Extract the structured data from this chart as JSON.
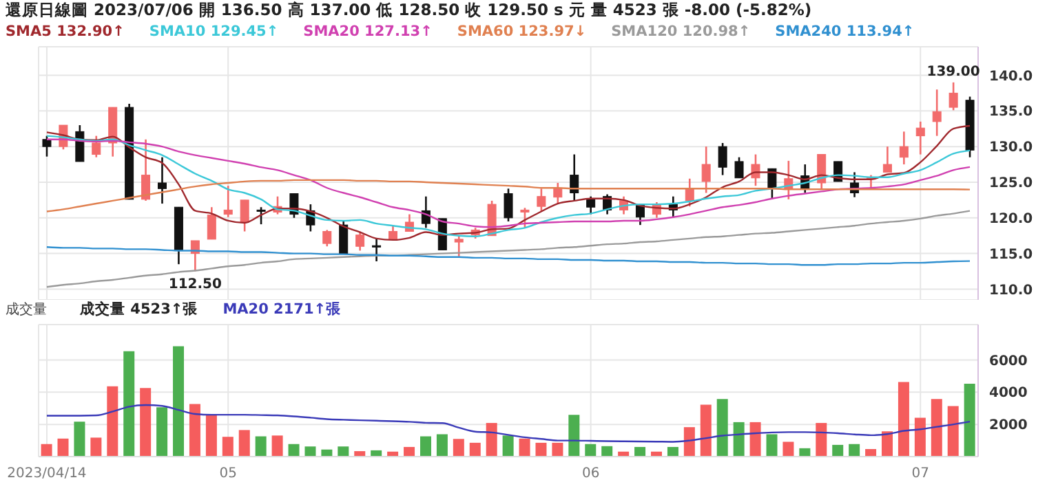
{
  "chart_data": [
    {
      "type": "candlestick",
      "title": "還原日線圖 2023/07/06 開 136.50 高 137.00 低 128.50 收 129.50 s 元 量 4523 張 -8.00 (-5.82%)",
      "categories": [
        "2023/04/14",
        null,
        null,
        null,
        null,
        null,
        null,
        null,
        null,
        null,
        null,
        "05",
        null,
        null,
        null,
        null,
        null,
        null,
        null,
        null,
        null,
        null,
        null,
        null,
        null,
        null,
        null,
        null,
        null,
        null,
        null,
        null,
        null,
        "06",
        null,
        null,
        null,
        null,
        null,
        null,
        null,
        null,
        null,
        null,
        null,
        null,
        null,
        null,
        null,
        null,
        null,
        null,
        null,
        "07",
        null,
        null,
        null
      ],
      "series": [
        {
          "type": "candlestick",
          "colors": [
            "#111111",
            "#f26b6b",
            "#111111",
            "#f26b6b",
            "#f26b6b",
            "#111111",
            "#f26b6b",
            "#111111",
            "#111111",
            "#f26b6b",
            "#f26b6b",
            "#f26b6b",
            "#f26b6b",
            "#111111",
            "#f26b6b",
            "#111111",
            "#111111",
            "#f26b6b",
            "#111111",
            "#f26b6b",
            "#111111",
            "#f26b6b",
            "#f26b6b",
            "#111111",
            "#111111",
            "#f26b6b",
            "#f26b6b",
            "#f26b6b",
            "#111111",
            "#f26b6b",
            "#f26b6b",
            "#f26b6b",
            "#111111",
            "#111111",
            "#111111",
            "#f26b6b",
            "#111111",
            "#f26b6b",
            "#111111",
            "#f26b6b",
            "#f26b6b",
            "#111111",
            "#111111",
            "#f26b6b",
            "#111111",
            "#f26b6b",
            "#111111",
            "#f26b6b",
            "#111111",
            "#111111",
            "#f26b6b",
            "#f26b6b",
            "#f26b6b",
            "#f26b6b",
            "#f26b6b",
            "#f26b6b",
            "#111111"
          ],
          "ohlc": [
            [
              131.0,
              131.5,
              128.6,
              130.0
            ],
            [
              130.0,
              133.0,
              129.6,
              133.0
            ],
            [
              132.1,
              133.0,
              127.9,
              127.9
            ],
            [
              128.9,
              131.5,
              128.5,
              130.5
            ],
            [
              130.5,
              135.5,
              128.6,
              135.5
            ],
            [
              135.5,
              136.0,
              122.6,
              122.6
            ],
            [
              122.6,
              131.0,
              122.4,
              126.0
            ],
            [
              124.9,
              128.5,
              122.0,
              124.1
            ],
            [
              121.5,
              121.5,
              113.5,
              115.5
            ],
            [
              115.0,
              116.8,
              112.5,
              116.8
            ],
            [
              117.0,
              121.5,
              117.0,
              120.4
            ],
            [
              120.5,
              124.5,
              120.1,
              121.1
            ],
            [
              119.4,
              122.5,
              118.1,
              122.5
            ],
            [
              121.1,
              121.5,
              119.1,
              121.0
            ],
            [
              120.8,
              123.0,
              120.5,
              121.6
            ],
            [
              123.4,
              123.4,
              120.0,
              120.5
            ],
            [
              121.0,
              121.9,
              118.1,
              119.0
            ],
            [
              116.4,
              118.3,
              116.0,
              118.1
            ],
            [
              119.0,
              119.5,
              115.0,
              115.0
            ],
            [
              116.0,
              118.1,
              115.4,
              117.6
            ],
            [
              116.1,
              117.1,
              113.9,
              115.9
            ],
            [
              117.0,
              118.9,
              117.0,
              118.1
            ],
            [
              118.1,
              120.5,
              118.1,
              119.4
            ],
            [
              121.0,
              123.0,
              118.6,
              119.2
            ],
            [
              119.9,
              119.9,
              115.5,
              115.5
            ],
            [
              116.6,
              117.5,
              114.6,
              117.0
            ],
            [
              117.6,
              118.6,
              117.1,
              118.3
            ],
            [
              117.5,
              122.4,
              117.5,
              121.9
            ],
            [
              123.4,
              124.1,
              119.5,
              120.0
            ],
            [
              120.8,
              121.4,
              118.6,
              121.1
            ],
            [
              121.6,
              124.1,
              120.9,
              123.0
            ],
            [
              122.9,
              124.9,
              122.0,
              124.2
            ],
            [
              126.0,
              128.9,
              122.4,
              123.5
            ],
            [
              122.6,
              123.0,
              120.5,
              121.5
            ],
            [
              123.0,
              123.3,
              120.5,
              121.1
            ],
            [
              121.1,
              123.0,
              120.5,
              122.4
            ],
            [
              121.8,
              121.8,
              119.0,
              120.1
            ],
            [
              120.5,
              122.2,
              120.0,
              121.8
            ],
            [
              121.9,
              123.0,
              120.0,
              121.1
            ],
            [
              122.4,
              125.5,
              121.6,
              124.1
            ],
            [
              125.1,
              130.0,
              123.5,
              127.5
            ],
            [
              130.0,
              130.5,
              126.0,
              127.1
            ],
            [
              127.9,
              128.5,
              125.6,
              125.6
            ],
            [
              125.6,
              128.9,
              124.5,
              127.5
            ],
            [
              126.9,
              126.9,
              122.6,
              124.2
            ],
            [
              124.1,
              128.0,
              122.6,
              125.5
            ],
            [
              125.9,
              127.5,
              123.5,
              124.1
            ],
            [
              124.9,
              128.9,
              124.1,
              128.9
            ],
            [
              127.9,
              127.9,
              125.1,
              125.1
            ],
            [
              124.9,
              126.4,
              122.9,
              123.5
            ],
            [
              125.4,
              126.0,
              124.1,
              125.6
            ],
            [
              126.4,
              130.0,
              126.4,
              127.5
            ],
            [
              128.5,
              132.1,
              127.5,
              130.0
            ],
            [
              131.5,
              133.5,
              128.9,
              132.6
            ],
            [
              133.5,
              138.0,
              131.5,
              134.9
            ],
            [
              135.5,
              139.0,
              135.1,
              137.5
            ],
            [
              136.5,
              137.0,
              128.5,
              129.5
            ]
          ]
        },
        {
          "type": "line",
          "name": "SMA5 132.90↑",
          "color": "#a0282d",
          "values": [
            132.0,
            131.6,
            131.0,
            130.9,
            131.4,
            129.9,
            128.5,
            127.7,
            124.7,
            121.0,
            120.6,
            119.6,
            119.3,
            120.4,
            121.3,
            121.3,
            120.9,
            120.0,
            118.8,
            118.0,
            117.1,
            116.9,
            117.2,
            118.0,
            117.6,
            117.8,
            117.9,
            118.4,
            118.5,
            119.7,
            120.9,
            122.0,
            122.4,
            122.7,
            122.7,
            122.5,
            121.7,
            121.4,
            121.3,
            121.9,
            122.9,
            124.3,
            125.1,
            126.4,
            126.4,
            126.0,
            125.4,
            126.0,
            125.6,
            125.4,
            125.4,
            126.1,
            126.3,
            127.8,
            130.1,
            132.5,
            132.9
          ]
        },
        {
          "type": "line",
          "name": "SMA10 129.45↑",
          "color": "#3cc8d8",
          "values": [
            131.5,
            131.3,
            131.0,
            130.8,
            131.0,
            130.2,
            129.5,
            128.8,
            127.5,
            126.2,
            125.2,
            124.0,
            123.5,
            122.6,
            121.2,
            121.0,
            120.3,
            119.7,
            119.6,
            119.7,
            119.2,
            118.9,
            118.6,
            118.4,
            117.8,
            117.5,
            117.4,
            117.8,
            118.3,
            118.6,
            119.4,
            120.0,
            120.4,
            120.6,
            121.2,
            121.7,
            121.9,
            121.9,
            122.0,
            122.3,
            122.7,
            123.0,
            123.2,
            123.8,
            124.1,
            124.5,
            124.9,
            125.6,
            126.0,
            125.9,
            125.7,
            125.7,
            126.2,
            126.7,
            127.8,
            129.0,
            129.45
          ]
        },
        {
          "type": "line",
          "name": "SMA20 127.13↑",
          "color": "#d040b0",
          "values": [
            131.0,
            131.0,
            130.8,
            130.7,
            130.8,
            130.6,
            130.4,
            130.0,
            129.3,
            128.8,
            128.4,
            128.0,
            127.6,
            127.1,
            126.7,
            126.0,
            125.3,
            124.2,
            123.5,
            122.9,
            122.2,
            121.5,
            121.1,
            120.5,
            119.5,
            119.2,
            118.8,
            118.7,
            118.9,
            119.2,
            119.3,
            119.4,
            119.5,
            119.5,
            119.5,
            119.6,
            119.6,
            119.8,
            120.1,
            120.5,
            121.0,
            121.5,
            121.8,
            122.2,
            122.7,
            123.1,
            123.4,
            123.7,
            124.0,
            124.1,
            124.2,
            124.4,
            124.7,
            125.3,
            125.9,
            126.7,
            127.13
          ]
        },
        {
          "type": "line",
          "name": "SMA60 123.97↓",
          "color": "#e08050",
          "values": [
            120.9,
            121.2,
            121.6,
            122.0,
            122.4,
            122.8,
            123.2,
            123.6,
            124.0,
            124.4,
            124.7,
            124.9,
            125.1,
            125.2,
            125.2,
            125.3,
            125.3,
            125.3,
            125.3,
            125.2,
            125.2,
            125.1,
            125.1,
            125.0,
            124.9,
            124.8,
            124.7,
            124.6,
            124.5,
            124.4,
            124.2,
            124.2,
            124.1,
            124.1,
            124.1,
            124.1,
            124.1,
            124.1,
            124.1,
            124.1,
            124.1,
            124.1,
            124.1,
            124.1,
            124.1,
            124.0,
            124.0,
            124.0,
            124.0,
            124.0,
            124.0,
            124.0,
            124.0,
            124.0,
            124.0,
            124.0,
            123.97
          ]
        },
        {
          "type": "line",
          "name": "SMA120 120.98↑",
          "color": "#9a9a9a",
          "values": [
            110.3,
            110.6,
            110.8,
            111.1,
            111.3,
            111.6,
            111.9,
            112.1,
            112.4,
            112.6,
            112.9,
            113.2,
            113.4,
            113.7,
            113.9,
            114.2,
            114.3,
            114.4,
            114.5,
            114.6,
            114.7,
            114.7,
            114.8,
            114.9,
            115.0,
            115.1,
            115.2,
            115.3,
            115.4,
            115.5,
            115.6,
            115.8,
            115.9,
            116.1,
            116.3,
            116.4,
            116.6,
            116.7,
            116.9,
            117.1,
            117.3,
            117.4,
            117.6,
            117.8,
            117.9,
            118.1,
            118.3,
            118.5,
            118.7,
            118.9,
            119.2,
            119.4,
            119.6,
            119.9,
            120.3,
            120.6,
            120.98
          ]
        },
        {
          "type": "line",
          "name": "SMA240 113.94↑",
          "color": "#3090d0",
          "values": [
            115.9,
            115.8,
            115.8,
            115.7,
            115.7,
            115.6,
            115.6,
            115.5,
            115.4,
            115.4,
            115.3,
            115.3,
            115.2,
            115.2,
            115.1,
            115.0,
            115.0,
            114.9,
            114.9,
            114.8,
            114.8,
            114.7,
            114.7,
            114.6,
            114.5,
            114.5,
            114.4,
            114.4,
            114.3,
            114.3,
            114.2,
            114.2,
            114.1,
            114.1,
            114.0,
            114.0,
            113.9,
            113.9,
            113.8,
            113.8,
            113.7,
            113.7,
            113.6,
            113.6,
            113.5,
            113.5,
            113.4,
            113.4,
            113.5,
            113.5,
            113.6,
            113.6,
            113.7,
            113.7,
            113.8,
            113.9,
            113.94
          ]
        }
      ],
      "ylim": [
        108.5,
        144
      ],
      "yticks": [
        {
          "value": 110,
          "label": "110.0"
        },
        {
          "value": 115,
          "label": "115.0"
        },
        {
          "value": 120,
          "label": "120.0"
        },
        {
          "value": 125,
          "label": "125.0"
        },
        {
          "value": 130,
          "label": "130.0"
        },
        {
          "value": 135,
          "label": "135.0"
        },
        {
          "value": 140,
          "label": "140.0"
        }
      ],
      "grid": true,
      "legend": "top left",
      "tick_labels": "y",
      "annotations": [
        {
          "text": "139.00",
          "y": 139
        },
        {
          "text": "112.50",
          "y": 112.5
        }
      ]
    },
    {
      "type": "bar",
      "title": "成交量",
      "categories": [
        "2023/04/14",
        null,
        null,
        null,
        null,
        null,
        null,
        null,
        null,
        null,
        null,
        "05",
        null,
        null,
        null,
        null,
        null,
        null,
        null,
        null,
        null,
        null,
        null,
        null,
        null,
        null,
        null,
        null,
        null,
        null,
        null,
        null,
        null,
        "06",
        null,
        null,
        null,
        null,
        null,
        null,
        null,
        null,
        null,
        null,
        null,
        null,
        null,
        null,
        null,
        null,
        null,
        null,
        null,
        "07",
        null,
        null,
        null
      ],
      "series": [
        {
          "type": "bar",
          "name": "成交量 4523↑張",
          "colors": [
            "#f55d5d",
            "#f55d5d",
            "#4caf50",
            "#f55d5d",
            "#f55d5d",
            "#4caf50",
            "#f55d5d",
            "#4caf50",
            "#4caf50",
            "#f55d5d",
            "#f55d5d",
            "#f55d5d",
            "#f55d5d",
            "#4caf50",
            "#f55d5d",
            "#4caf50",
            "#4caf50",
            "#4caf50",
            "#4caf50",
            "#f55d5d",
            "#4caf50",
            "#f55d5d",
            "#f55d5d",
            "#4caf50",
            "#4caf50",
            "#f55d5d",
            "#f55d5d",
            "#f55d5d",
            "#4caf50",
            "#f55d5d",
            "#f55d5d",
            "#f55d5d",
            "#4caf50",
            "#4caf50",
            "#4caf50",
            "#f55d5d",
            "#4caf50",
            "#f55d5d",
            "#4caf50",
            "#f55d5d",
            "#f55d5d",
            "#4caf50",
            "#4caf50",
            "#f55d5d",
            "#4caf50",
            "#f55d5d",
            "#4caf50",
            "#f55d5d",
            "#4caf50",
            "#4caf50",
            "#f55d5d",
            "#f55d5d",
            "#f55d5d",
            "#f55d5d",
            "#f55d5d",
            "#f55d5d",
            "#4caf50"
          ],
          "values": [
            780,
            1120,
            2170,
            1180,
            4370,
            6540,
            4260,
            3060,
            6850,
            3270,
            2610,
            1230,
            1650,
            1260,
            1310,
            780,
            630,
            440,
            630,
            340,
            390,
            310,
            600,
            1260,
            1390,
            1100,
            860,
            2090,
            1310,
            1120,
            860,
            860,
            2590,
            780,
            650,
            310,
            600,
            310,
            600,
            1830,
            3220,
            3580,
            2140,
            2140,
            1390,
            920,
            520,
            2090,
            730,
            780,
            470,
            1570,
            4630,
            2410,
            3580,
            3140,
            4523
          ]
        },
        {
          "type": "line",
          "name": "MA20 2171↑張",
          "color": "#3a3ab8",
          "values": [
            2540,
            2540,
            2540,
            2560,
            2800,
            3100,
            3200,
            3150,
            2900,
            2650,
            2600,
            2600,
            2600,
            2580,
            2560,
            2500,
            2420,
            2330,
            2290,
            2260,
            2230,
            2200,
            2160,
            2100,
            2080,
            1800,
            1550,
            1500,
            1350,
            1200,
            1100,
            1000,
            1000,
            980,
            960,
            950,
            940,
            930,
            920,
            1000,
            1150,
            1300,
            1380,
            1450,
            1500,
            1520,
            1520,
            1500,
            1450,
            1380,
            1330,
            1400,
            1600,
            1700,
            1850,
            2000,
            2171
          ]
        }
      ],
      "ylim": [
        0,
        8200
      ],
      "yticks": [
        2000,
        4000,
        6000
      ],
      "grid": true,
      "legend": "top left"
    }
  ]
}
